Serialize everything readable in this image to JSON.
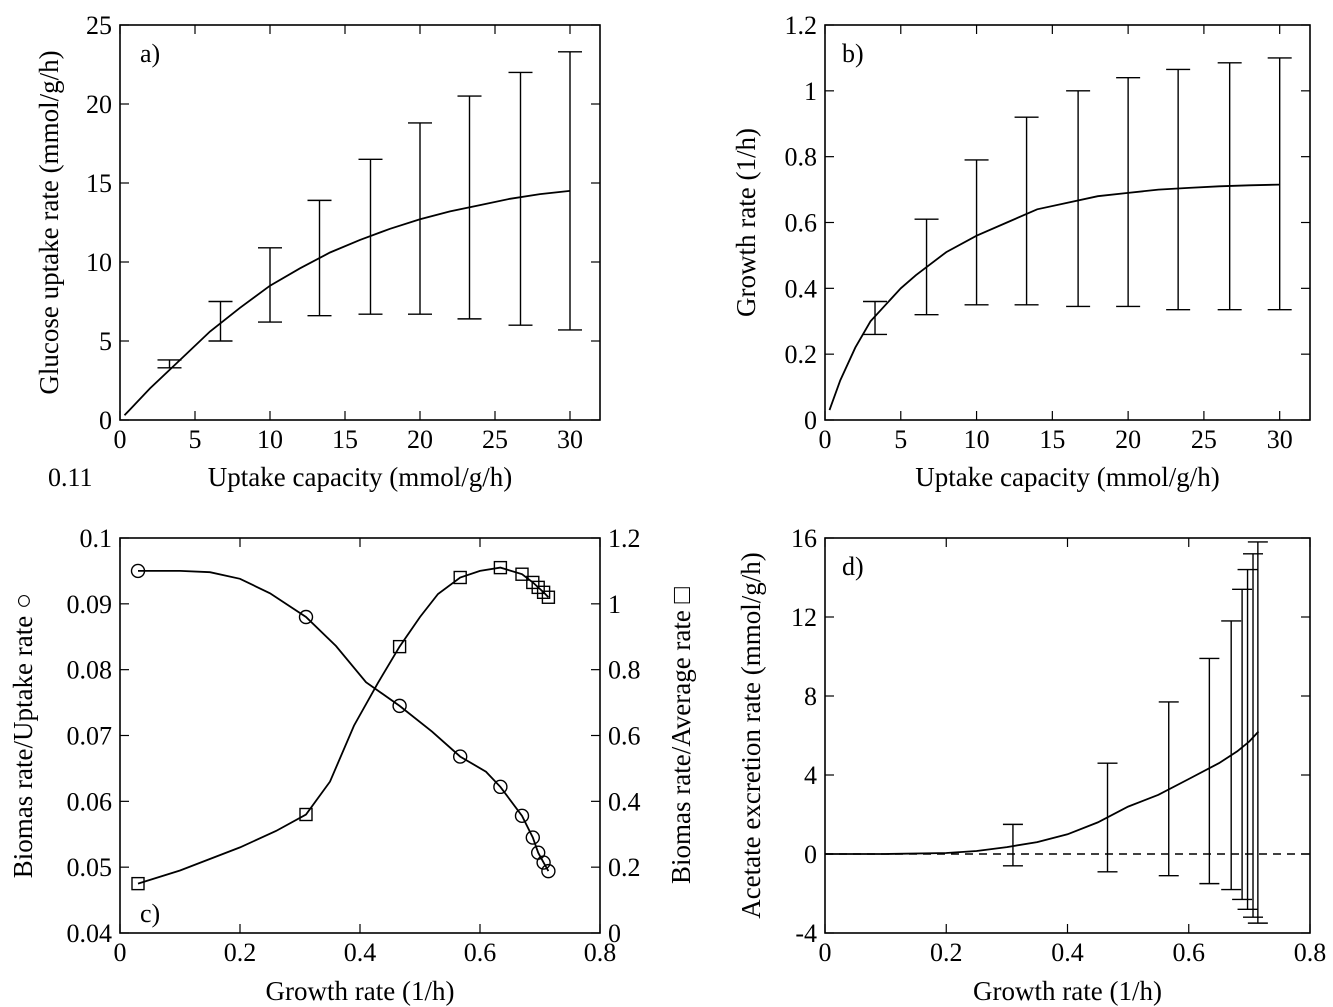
{
  "chart_data": [
    {
      "id": "a",
      "type": "line",
      "panel_label": "a)",
      "xlabel": "Uptake capacity (mmol/g/h)",
      "ylabel": "Glucose uptake rate (mmol/g/h)",
      "xlim": [
        0,
        32
      ],
      "ylim": [
        0,
        25
      ],
      "xticks": [
        0,
        5,
        10,
        15,
        20,
        25,
        30
      ],
      "yticks": [
        0,
        5,
        10,
        15,
        20,
        25
      ],
      "ytick_labels": [
        "0",
        "5",
        "10",
        "15",
        "20",
        "25"
      ],
      "extra_label": "0.11",
      "curve": {
        "x": [
          0.3,
          2,
          4,
          6,
          8,
          10,
          12,
          14,
          16,
          18,
          20,
          22,
          24,
          26,
          28,
          30
        ],
        "y": [
          0.3,
          2.0,
          3.8,
          5.6,
          7.1,
          8.5,
          9.6,
          10.6,
          11.4,
          12.1,
          12.7,
          13.2,
          13.6,
          14.0,
          14.3,
          14.5
        ]
      },
      "errorbars": [
        {
          "x": 3.3,
          "low": 3.3,
          "high": 3.8
        },
        {
          "x": 6.7,
          "low": 5.0,
          "high": 7.5
        },
        {
          "x": 10,
          "low": 6.2,
          "high": 10.9
        },
        {
          "x": 13.3,
          "low": 6.6,
          "high": 13.9
        },
        {
          "x": 16.7,
          "low": 6.7,
          "high": 16.5
        },
        {
          "x": 20,
          "low": 6.7,
          "high": 18.8
        },
        {
          "x": 23.3,
          "low": 6.4,
          "high": 20.5
        },
        {
          "x": 26.7,
          "low": 6.0,
          "high": 22.0
        },
        {
          "x": 30,
          "low": 5.7,
          "high": 23.3
        }
      ]
    },
    {
      "id": "b",
      "type": "line",
      "panel_label": "b)",
      "xlabel": "Uptake capacity (mmol/g/h)",
      "ylabel": "Growth rate (1/h)",
      "xlim": [
        0,
        32
      ],
      "ylim": [
        0,
        1.2
      ],
      "xticks": [
        0,
        5,
        10,
        15,
        20,
        25,
        30
      ],
      "yticks": [
        0,
        0.2,
        0.4,
        0.6,
        0.8,
        1.0,
        1.2
      ],
      "ytick_labels": [
        "0",
        "0.2",
        "0.4",
        "0.6",
        "0.8",
        "1",
        "1.2"
      ],
      "curve": {
        "x": [
          0.3,
          1,
          2,
          3,
          4,
          5,
          6,
          8,
          10,
          12,
          14,
          16,
          18,
          20,
          22,
          24,
          26,
          28,
          30
        ],
        "y": [
          0.03,
          0.12,
          0.22,
          0.3,
          0.35,
          0.4,
          0.44,
          0.51,
          0.56,
          0.6,
          0.64,
          0.66,
          0.68,
          0.69,
          0.7,
          0.705,
          0.71,
          0.713,
          0.715
        ]
      },
      "errorbars": [
        {
          "x": 3.3,
          "low": 0.26,
          "high": 0.36
        },
        {
          "x": 6.7,
          "low": 0.32,
          "high": 0.61
        },
        {
          "x": 10,
          "low": 0.35,
          "high": 0.79
        },
        {
          "x": 13.3,
          "low": 0.35,
          "high": 0.92
        },
        {
          "x": 16.7,
          "low": 0.345,
          "high": 1.0
        },
        {
          "x": 20,
          "low": 0.345,
          "high": 1.04
        },
        {
          "x": 23.3,
          "low": 0.335,
          "high": 1.065
        },
        {
          "x": 26.7,
          "low": 0.335,
          "high": 1.085
        },
        {
          "x": 30,
          "low": 0.335,
          "high": 1.1
        }
      ]
    },
    {
      "id": "c",
      "type": "line",
      "panel_label": "c)",
      "xlabel": "Growth rate (1/h)",
      "ylabel": "Biomas rate/Uptake rate ○",
      "ylabel_right": "Biomas rate/Average rate □",
      "xlim": [
        0,
        0.8
      ],
      "ylim": [
        0.04,
        0.1
      ],
      "ylim_right": [
        0,
        1.2
      ],
      "xticks": [
        0,
        0.2,
        0.4,
        0.6,
        0.8
      ],
      "xtick_labels": [
        "0",
        "0.2",
        "0.4",
        "0.6",
        "0.8"
      ],
      "yticks": [
        0.04,
        0.05,
        0.06,
        0.07,
        0.08,
        0.09,
        0.1
      ],
      "ytick_labels": [
        "0.04",
        "0.05",
        "0.06",
        "0.07",
        "0.08",
        "0.09",
        "0.1"
      ],
      "yticks_right": [
        0,
        0.2,
        0.4,
        0.6,
        0.8,
        1.0,
        1.2
      ],
      "ytick_labels_right": [
        "0",
        "0.2",
        "0.4",
        "0.6",
        "0.8",
        "1",
        "1.2"
      ],
      "series": [
        {
          "marker": "circle",
          "axis": "left",
          "x": [
            0.03,
            0.1,
            0.15,
            0.2,
            0.25,
            0.31,
            0.36,
            0.41,
            0.466,
            0.52,
            0.567,
            0.61,
            0.634,
            0.67,
            0.688,
            0.697,
            0.706,
            0.714
          ],
          "y": [
            0.095,
            0.095,
            0.0948,
            0.0938,
            0.0916,
            0.088,
            0.0836,
            0.0781,
            0.0745,
            0.0706,
            0.0668,
            0.0645,
            0.0622,
            0.0578,
            0.0545,
            0.0522,
            0.0507,
            0.0494
          ],
          "marker_x": [
            0.03,
            0.31,
            0.466,
            0.567,
            0.634,
            0.67,
            0.688,
            0.697,
            0.706,
            0.714
          ],
          "marker_y": [
            0.095,
            0.088,
            0.0745,
            0.0668,
            0.0622,
            0.0578,
            0.0545,
            0.0522,
            0.0507,
            0.0494
          ]
        },
        {
          "marker": "square",
          "axis": "right",
          "x": [
            0.03,
            0.1,
            0.2,
            0.26,
            0.31,
            0.35,
            0.39,
            0.43,
            0.466,
            0.5,
            0.53,
            0.567,
            0.6,
            0.634,
            0.67,
            0.688,
            0.697,
            0.706,
            0.714
          ],
          "y": [
            0.15,
            0.19,
            0.26,
            0.31,
            0.36,
            0.46,
            0.63,
            0.76,
            0.87,
            0.96,
            1.03,
            1.08,
            1.1,
            1.11,
            1.09,
            1.065,
            1.05,
            1.035,
            1.02
          ],
          "marker_x": [
            0.03,
            0.31,
            0.466,
            0.567,
            0.634,
            0.67,
            0.688,
            0.697,
            0.706,
            0.714
          ],
          "marker_y": [
            0.15,
            0.36,
            0.87,
            1.08,
            1.11,
            1.09,
            1.065,
            1.05,
            1.035,
            1.02
          ]
        }
      ]
    },
    {
      "id": "d",
      "type": "line",
      "panel_label": "d)",
      "xlabel": "Growth rate (1/h)",
      "ylabel": "Acetate excretion rate (mmol/g/h)",
      "xlim": [
        0,
        0.8
      ],
      "ylim": [
        -4,
        16
      ],
      "xticks": [
        0,
        0.2,
        0.4,
        0.6,
        0.8
      ],
      "xtick_labels": [
        "0",
        "0.2",
        "0.4",
        "0.6",
        "0.8"
      ],
      "yticks": [
        -4,
        0,
        4,
        8,
        12,
        16
      ],
      "ytick_labels": [
        "-4",
        "0",
        "4",
        "8",
        "12",
        "16"
      ],
      "reference_line_y": 0,
      "curve": {
        "x": [
          0.0,
          0.1,
          0.2,
          0.25,
          0.3,
          0.35,
          0.4,
          0.45,
          0.5,
          0.55,
          0.6,
          0.65,
          0.68,
          0.7,
          0.715
        ],
        "y": [
          0.0,
          0.0,
          0.05,
          0.15,
          0.35,
          0.6,
          1.0,
          1.6,
          2.4,
          3.0,
          3.8,
          4.6,
          5.2,
          5.7,
          6.2
        ]
      },
      "errorbars": [
        {
          "x": 0.31,
          "low": -0.6,
          "high": 1.5
        },
        {
          "x": 0.466,
          "low": -0.9,
          "high": 4.6
        },
        {
          "x": 0.567,
          "low": -1.1,
          "high": 7.7
        },
        {
          "x": 0.634,
          "low": -1.5,
          "high": 9.9
        },
        {
          "x": 0.67,
          "low": -1.8,
          "high": 11.8
        },
        {
          "x": 0.688,
          "low": -2.3,
          "high": 13.4
        },
        {
          "x": 0.697,
          "low": -2.8,
          "high": 14.4
        },
        {
          "x": 0.706,
          "low": -3.2,
          "high": 15.2
        },
        {
          "x": 0.714,
          "low": -3.5,
          "high": 15.8
        }
      ]
    }
  ]
}
